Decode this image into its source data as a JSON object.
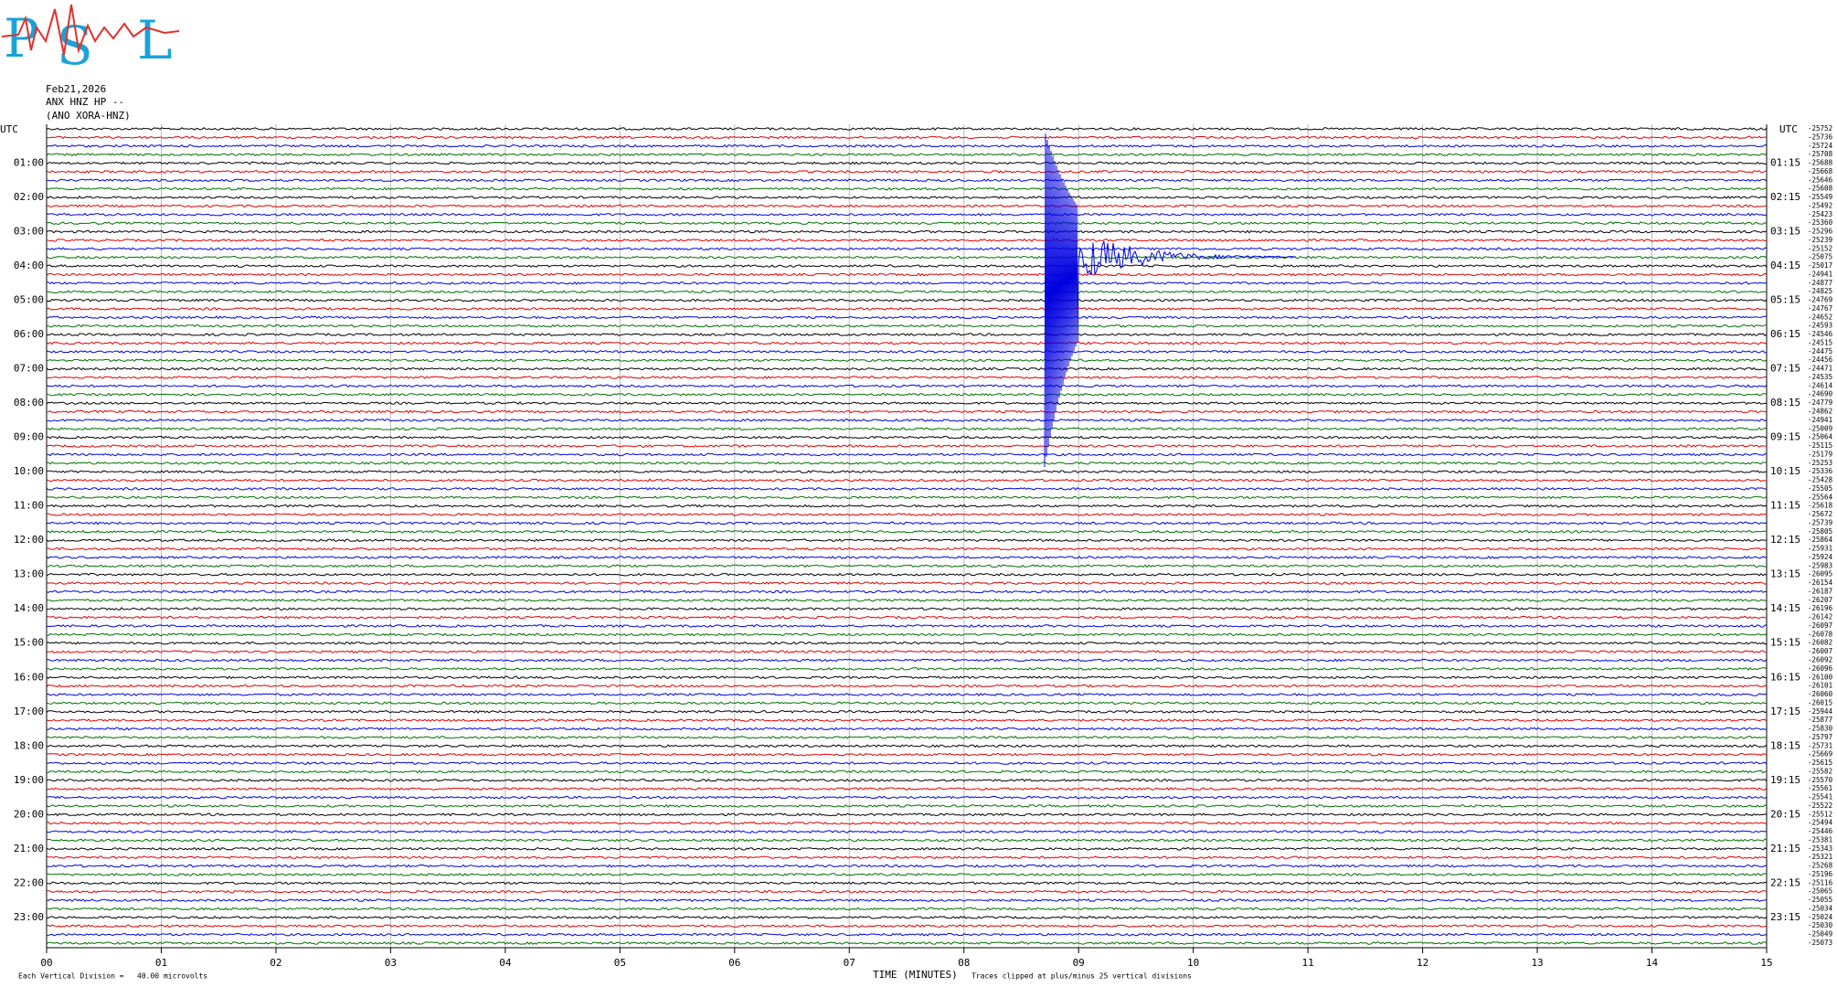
{
  "logo": {
    "letters": [
      "P",
      "S",
      "L"
    ]
  },
  "header": {
    "date": "Feb21,2026",
    "station": "ANX HNZ HP --",
    "network": "(ANO XORA-HNZ)"
  },
  "left_axis": {
    "title": "UTC",
    "labels": [
      "01:00",
      "02:00",
      "03:00",
      "04:00",
      "05:00",
      "06:00",
      "07:00",
      "08:00",
      "09:00",
      "10:00",
      "11:00",
      "12:00",
      "13:00",
      "14:00",
      "15:00",
      "16:00",
      "17:00",
      "18:00",
      "19:00",
      "20:00",
      "21:00",
      "22:00",
      "23:00"
    ]
  },
  "right_axis": {
    "title": "UTC",
    "labels": [
      "01:15",
      "02:15",
      "03:15",
      "04:15",
      "05:15",
      "06:15",
      "07:15",
      "08:15",
      "09:15",
      "10:15",
      "11:15",
      "12:15",
      "13:15",
      "14:15",
      "15:15",
      "16:15",
      "17:15",
      "18:15",
      "19:15",
      "20:15",
      "21:15",
      "22:15",
      "23:15"
    ],
    "offsets": [
      -25752,
      -25736,
      -25724,
      -25708,
      -25688,
      -25668,
      -25646,
      -25608,
      -25549,
      -25492,
      -25423,
      -25360,
      -25296,
      -25239,
      -25152,
      -25075,
      -25017,
      -24941,
      -24877,
      -24825,
      -24769,
      -24767,
      -24652,
      -24593,
      -24546,
      -24515,
      -24475,
      -24456,
      -24471,
      -24535,
      -24614,
      -24690,
      -24779,
      -24862,
      -24941,
      -25009,
      -25064,
      -25115,
      -25179,
      -25253,
      -25336,
      -25428,
      -25505,
      -25564,
      -25618,
      -25672,
      -25739,
      -25805,
      -25864,
      -25931,
      -25924,
      -25983,
      -26095,
      -26154,
      -26187,
      -26207,
      -26196,
      -26142,
      -26097,
      -26078,
      -26082,
      -26007,
      -26092,
      -26096,
      -26100,
      -26101,
      -26060,
      -26015,
      -25944,
      -25877,
      -25830,
      -25797,
      -25731,
      -25669,
      -25615,
      -25582,
      -25570,
      -25561,
      -25541,
      -25522,
      -25512,
      -25494,
      -25446,
      -25381,
      -25343,
      -25321,
      -25268,
      -25196,
      -25116,
      -25065,
      -25055,
      -25034,
      -25024,
      -25030,
      -25049,
      -25073
    ]
  },
  "x_axis": {
    "ticks": [
      "00",
      "01",
      "02",
      "03",
      "04",
      "05",
      "06",
      "07",
      "08",
      "09",
      "10",
      "11",
      "12",
      "13",
      "14",
      "15"
    ],
    "title": "TIME (MINUTES)"
  },
  "footer": {
    "scale": "Each Vertical Division =   40.00 microvolts",
    "clip": "Traces clipped at plus/minus 25 vertical divisions"
  }
}
